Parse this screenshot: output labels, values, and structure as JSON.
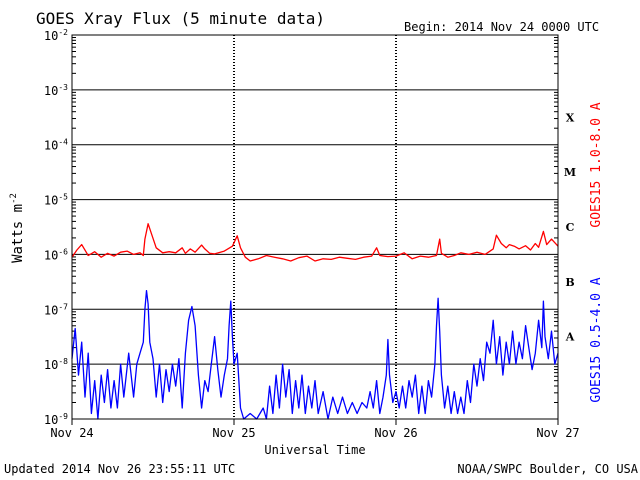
{
  "chart_data": {
    "type": "line",
    "title": "GOES Xray Flux (5 minute data)",
    "begin": "Begin:  2014 Nov 24 0000 UTC",
    "xlabel": "Universal Time",
    "ylabel": "Watts m",
    "ylabel_sup": "-2",
    "yscale": "log",
    "ylim": [
      1e-09,
      0.01
    ],
    "xlim": [
      0,
      3
    ],
    "x_ticks": [
      {
        "x": 0,
        "label": "Nov 24"
      },
      {
        "x": 1,
        "label": "Nov 25"
      },
      {
        "x": 2,
        "label": "Nov 26"
      },
      {
        "x": 3,
        "label": "Nov 27"
      }
    ],
    "y_ticks": [
      {
        "exp": -2,
        "label": "10",
        "sup": "-2"
      },
      {
        "exp": -3,
        "label": "10",
        "sup": "-3"
      },
      {
        "exp": -4,
        "label": "10",
        "sup": "-4"
      },
      {
        "exp": -5,
        "label": "10",
        "sup": "-5"
      },
      {
        "exp": -6,
        "label": "10",
        "sup": "-6"
      },
      {
        "exp": -7,
        "label": "10",
        "sup": "-7"
      },
      {
        "exp": -8,
        "label": "10",
        "sup": "-8"
      },
      {
        "exp": -9,
        "label": "10",
        "sup": "-9"
      }
    ],
    "flare_classes": [
      {
        "label": "X",
        "exp": -3.5
      },
      {
        "label": "M",
        "exp": -4.5
      },
      {
        "label": "C",
        "exp": -5.5
      },
      {
        "label": "B",
        "exp": -6.5
      },
      {
        "label": "A",
        "exp": -7.5
      }
    ],
    "grid": true,
    "series": [
      {
        "name": "GOES15 1.0-8.0 A",
        "color": "#ff0000",
        "points": [
          [
            0.0,
            -6.05
          ],
          [
            0.03,
            -5.92
          ],
          [
            0.06,
            -5.82
          ],
          [
            0.1,
            -6.02
          ],
          [
            0.14,
            -5.95
          ],
          [
            0.18,
            -6.05
          ],
          [
            0.22,
            -5.98
          ],
          [
            0.26,
            -6.03
          ],
          [
            0.3,
            -5.96
          ],
          [
            0.34,
            -5.94
          ],
          [
            0.38,
            -6.0
          ],
          [
            0.42,
            -5.97
          ],
          [
            0.44,
            -6.02
          ],
          [
            0.45,
            -5.72
          ],
          [
            0.47,
            -5.44
          ],
          [
            0.49,
            -5.62
          ],
          [
            0.52,
            -5.88
          ],
          [
            0.56,
            -5.97
          ],
          [
            0.6,
            -5.95
          ],
          [
            0.64,
            -5.97
          ],
          [
            0.68,
            -5.88
          ],
          [
            0.7,
            -5.98
          ],
          [
            0.73,
            -5.9
          ],
          [
            0.76,
            -5.96
          ],
          [
            0.8,
            -5.83
          ],
          [
            0.82,
            -5.9
          ],
          [
            0.85,
            -5.98
          ],
          [
            0.88,
            -5.99
          ],
          [
            0.94,
            -5.94
          ],
          [
            0.99,
            -5.85
          ],
          [
            1.02,
            -5.66
          ],
          [
            1.04,
            -5.88
          ],
          [
            1.07,
            -6.05
          ],
          [
            1.1,
            -6.12
          ],
          [
            1.15,
            -6.08
          ],
          [
            1.2,
            -6.02
          ],
          [
            1.25,
            -6.05
          ],
          [
            1.3,
            -6.08
          ],
          [
            1.35,
            -6.12
          ],
          [
            1.4,
            -6.06
          ],
          [
            1.45,
            -6.03
          ],
          [
            1.5,
            -6.12
          ],
          [
            1.55,
            -6.08
          ],
          [
            1.6,
            -6.09
          ],
          [
            1.65,
            -6.05
          ],
          [
            1.7,
            -6.07
          ],
          [
            1.75,
            -6.09
          ],
          [
            1.8,
            -6.05
          ],
          [
            1.85,
            -6.03
          ],
          [
            1.88,
            -5.88
          ],
          [
            1.9,
            -6.02
          ],
          [
            1.95,
            -6.04
          ],
          [
            2.0,
            -6.03
          ],
          [
            2.05,
            -5.97
          ],
          [
            2.1,
            -6.08
          ],
          [
            2.15,
            -6.03
          ],
          [
            2.2,
            -6.05
          ],
          [
            2.25,
            -6.02
          ],
          [
            2.27,
            -5.72
          ],
          [
            2.28,
            -5.98
          ],
          [
            2.32,
            -6.05
          ],
          [
            2.36,
            -6.02
          ],
          [
            2.4,
            -5.97
          ],
          [
            2.45,
            -6.0
          ],
          [
            2.5,
            -5.96
          ],
          [
            2.55,
            -6.0
          ],
          [
            2.6,
            -5.9
          ],
          [
            2.62,
            -5.65
          ],
          [
            2.65,
            -5.8
          ],
          [
            2.68,
            -5.88
          ],
          [
            2.7,
            -5.82
          ],
          [
            2.73,
            -5.85
          ],
          [
            2.76,
            -5.9
          ],
          [
            2.8,
            -5.84
          ],
          [
            2.83,
            -5.92
          ],
          [
            2.86,
            -5.8
          ],
          [
            2.88,
            -5.87
          ],
          [
            2.91,
            -5.58
          ],
          [
            2.93,
            -5.82
          ],
          [
            2.96,
            -5.72
          ],
          [
            3.0,
            -5.85
          ]
        ]
      },
      {
        "name": "GOES15 0.5-4.0 A",
        "color": "#0000ff",
        "points": [
          [
            0.0,
            -7.9
          ],
          [
            0.02,
            -7.35
          ],
          [
            0.04,
            -8.2
          ],
          [
            0.06,
            -7.6
          ],
          [
            0.08,
            -8.6
          ],
          [
            0.1,
            -7.8
          ],
          [
            0.12,
            -8.9
          ],
          [
            0.14,
            -8.3
          ],
          [
            0.16,
            -9.0
          ],
          [
            0.18,
            -8.2
          ],
          [
            0.2,
            -8.7
          ],
          [
            0.22,
            -8.1
          ],
          [
            0.24,
            -8.8
          ],
          [
            0.26,
            -8.3
          ],
          [
            0.28,
            -8.8
          ],
          [
            0.3,
            -8.0
          ],
          [
            0.32,
            -8.6
          ],
          [
            0.35,
            -7.8
          ],
          [
            0.38,
            -8.6
          ],
          [
            0.4,
            -8.0
          ],
          [
            0.42,
            -7.8
          ],
          [
            0.44,
            -7.6
          ],
          [
            0.45,
            -7.0
          ],
          [
            0.46,
            -6.66
          ],
          [
            0.47,
            -6.9
          ],
          [
            0.48,
            -7.6
          ],
          [
            0.5,
            -7.9
          ],
          [
            0.52,
            -8.6
          ],
          [
            0.54,
            -8.0
          ],
          [
            0.56,
            -8.7
          ],
          [
            0.58,
            -8.1
          ],
          [
            0.6,
            -8.5
          ],
          [
            0.62,
            -8.0
          ],
          [
            0.64,
            -8.4
          ],
          [
            0.66,
            -7.9
          ],
          [
            0.68,
            -8.8
          ],
          [
            0.7,
            -7.8
          ],
          [
            0.72,
            -7.2
          ],
          [
            0.74,
            -6.95
          ],
          [
            0.76,
            -7.3
          ],
          [
            0.78,
            -8.2
          ],
          [
            0.8,
            -8.8
          ],
          [
            0.82,
            -8.3
          ],
          [
            0.84,
            -8.5
          ],
          [
            0.86,
            -8.0
          ],
          [
            0.88,
            -7.5
          ],
          [
            0.9,
            -8.1
          ],
          [
            0.92,
            -8.6
          ],
          [
            0.94,
            -8.2
          ],
          [
            0.96,
            -7.9
          ],
          [
            0.97,
            -7.3
          ],
          [
            0.98,
            -6.85
          ],
          [
            0.99,
            -7.5
          ],
          [
            1.0,
            -8.0
          ],
          [
            1.02,
            -7.8
          ],
          [
            1.04,
            -8.8
          ],
          [
            1.06,
            -9.0
          ],
          [
            1.1,
            -8.9
          ],
          [
            1.14,
            -9.0
          ],
          [
            1.18,
            -8.8
          ],
          [
            1.2,
            -9.0
          ],
          [
            1.22,
            -8.4
          ],
          [
            1.24,
            -8.9
          ],
          [
            1.26,
            -8.2
          ],
          [
            1.28,
            -8.8
          ],
          [
            1.3,
            -8.0
          ],
          [
            1.32,
            -8.6
          ],
          [
            1.34,
            -8.1
          ],
          [
            1.36,
            -8.9
          ],
          [
            1.38,
            -8.3
          ],
          [
            1.4,
            -8.8
          ],
          [
            1.42,
            -8.2
          ],
          [
            1.44,
            -8.9
          ],
          [
            1.46,
            -8.4
          ],
          [
            1.48,
            -8.8
          ],
          [
            1.5,
            -8.3
          ],
          [
            1.52,
            -8.9
          ],
          [
            1.55,
            -8.5
          ],
          [
            1.58,
            -9.0
          ],
          [
            1.61,
            -8.6
          ],
          [
            1.64,
            -8.9
          ],
          [
            1.67,
            -8.6
          ],
          [
            1.7,
            -8.9
          ],
          [
            1.73,
            -8.7
          ],
          [
            1.76,
            -8.9
          ],
          [
            1.79,
            -8.7
          ],
          [
            1.82,
            -8.8
          ],
          [
            1.84,
            -8.5
          ],
          [
            1.86,
            -8.8
          ],
          [
            1.88,
            -8.3
          ],
          [
            1.9,
            -8.9
          ],
          [
            1.92,
            -8.6
          ],
          [
            1.94,
            -8.2
          ],
          [
            1.95,
            -7.55
          ],
          [
            1.96,
            -8.2
          ],
          [
            1.98,
            -8.7
          ],
          [
            2.0,
            -8.5
          ],
          [
            2.02,
            -8.8
          ],
          [
            2.04,
            -8.4
          ],
          [
            2.06,
            -8.8
          ],
          [
            2.08,
            -8.3
          ],
          [
            2.1,
            -8.6
          ],
          [
            2.12,
            -8.2
          ],
          [
            2.14,
            -8.9
          ],
          [
            2.16,
            -8.4
          ],
          [
            2.18,
            -8.9
          ],
          [
            2.2,
            -8.3
          ],
          [
            2.22,
            -8.6
          ],
          [
            2.24,
            -8.0
          ],
          [
            2.25,
            -7.3
          ],
          [
            2.26,
            -6.8
          ],
          [
            2.27,
            -7.4
          ],
          [
            2.28,
            -8.2
          ],
          [
            2.3,
            -8.8
          ],
          [
            2.32,
            -8.4
          ],
          [
            2.34,
            -8.9
          ],
          [
            2.36,
            -8.5
          ],
          [
            2.38,
            -8.9
          ],
          [
            2.4,
            -8.6
          ],
          [
            2.42,
            -8.9
          ],
          [
            2.44,
            -8.3
          ],
          [
            2.46,
            -8.7
          ],
          [
            2.48,
            -8.0
          ],
          [
            2.5,
            -8.4
          ],
          [
            2.52,
            -7.9
          ],
          [
            2.54,
            -8.3
          ],
          [
            2.56,
            -7.6
          ],
          [
            2.58,
            -7.8
          ],
          [
            2.6,
            -7.2
          ],
          [
            2.62,
            -8.0
          ],
          [
            2.64,
            -7.5
          ],
          [
            2.66,
            -8.2
          ],
          [
            2.68,
            -7.6
          ],
          [
            2.7,
            -8.0
          ],
          [
            2.72,
            -7.4
          ],
          [
            2.74,
            -8.0
          ],
          [
            2.76,
            -7.6
          ],
          [
            2.78,
            -7.9
          ],
          [
            2.8,
            -7.3
          ],
          [
            2.82,
            -7.7
          ],
          [
            2.84,
            -8.1
          ],
          [
            2.86,
            -7.8
          ],
          [
            2.88,
            -7.2
          ],
          [
            2.9,
            -7.7
          ],
          [
            2.91,
            -6.85
          ],
          [
            2.92,
            -7.5
          ],
          [
            2.94,
            -7.9
          ],
          [
            2.96,
            -7.4
          ],
          [
            2.98,
            -8.0
          ],
          [
            3.0,
            -7.8
          ]
        ]
      }
    ]
  },
  "footer": {
    "updated": "Updated 2014 Nov 26 23:55:11 UTC",
    "credit": "NOAA/SWPC Boulder, CO USA"
  }
}
